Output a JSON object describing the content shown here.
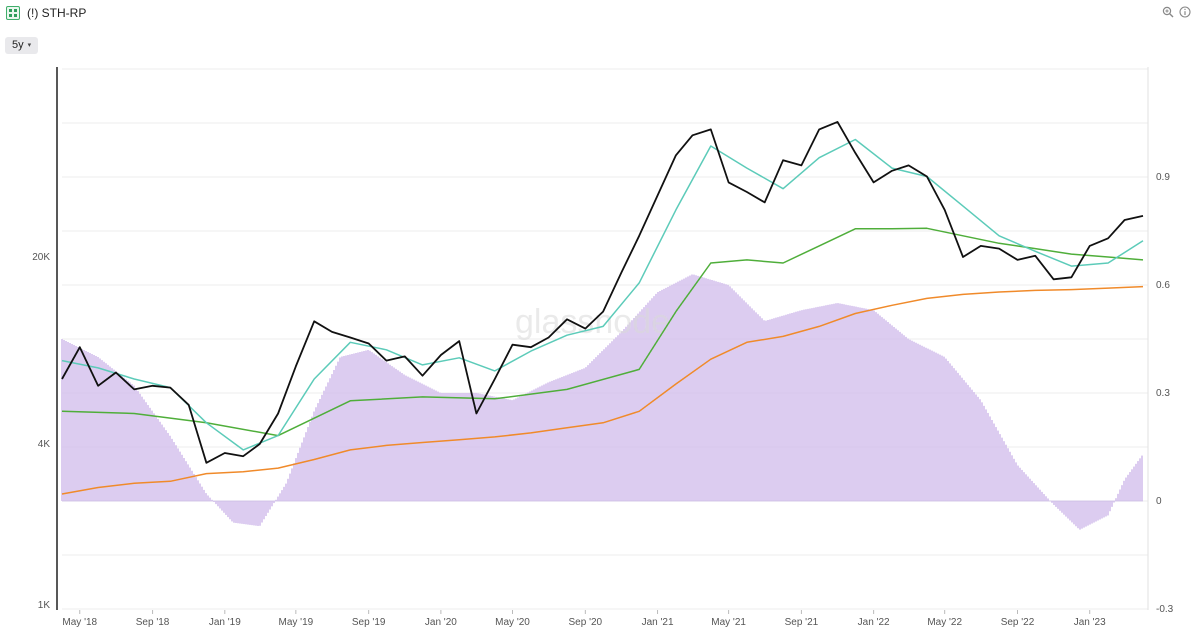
{
  "window": {
    "title": "(!) STH-RP",
    "app_icon": "chart-grid-icon",
    "zoom_icon": "zoom-icon",
    "info_icon": "info-icon"
  },
  "toolbar": {
    "range_label": "5y",
    "range_chevron": "▾"
  },
  "watermark": "glassnode",
  "colors": {
    "price": "#111111",
    "cyan_ma": "#5ccbb9",
    "green_ma": "#4fae3a",
    "sth_rp": "#f08a2a",
    "oscillator": "#d3c0ec"
  },
  "chart_data": {
    "type": "line",
    "x_labels": [
      "May '18",
      "Sep '18",
      "Jan '19",
      "May '19",
      "Sep '19",
      "Jan '20",
      "May '20",
      "Sep '20",
      "Jan '21",
      "May '21",
      "Sep '21",
      "Jan '22",
      "May '22",
      "Sep '22",
      "Jan '23"
    ],
    "left_axis": {
      "scale": "log",
      "tick_labels": [
        "1K",
        "4K",
        "20K"
      ],
      "tick_values": [
        1000,
        4000,
        20000
      ],
      "range": [
        1000,
        120000
      ]
    },
    "right_axis": {
      "scale": "linear",
      "tick_labels": [
        "-0.3",
        "0",
        "0.3",
        "0.6",
        "0.9"
      ],
      "tick_values": [
        -0.3,
        0,
        0.3,
        0.6,
        0.9
      ],
      "range": [
        -0.3,
        1.2
      ]
    },
    "x_range": [
      "2018-04-01",
      "2023-04-01"
    ],
    "grid": true,
    "legend": "none",
    "series": [
      {
        "color": "#111111",
        "axis": "left",
        "points": [
          [
            "2018-04-01",
            7000
          ],
          [
            "2018-05-01",
            9200
          ],
          [
            "2018-06-01",
            6600
          ],
          [
            "2018-07-01",
            7400
          ],
          [
            "2018-08-01",
            6400
          ],
          [
            "2018-09-01",
            6600
          ],
          [
            "2018-10-01",
            6500
          ],
          [
            "2018-11-01",
            5600
          ],
          [
            "2018-12-01",
            3400
          ],
          [
            "2019-01-01",
            3700
          ],
          [
            "2019-02-01",
            3600
          ],
          [
            "2019-03-01",
            4000
          ],
          [
            "2019-04-01",
            5200
          ],
          [
            "2019-05-01",
            7800
          ],
          [
            "2019-06-01",
            11500
          ],
          [
            "2019-07-01",
            10500
          ],
          [
            "2019-08-01",
            10000
          ],
          [
            "2019-09-01",
            9500
          ],
          [
            "2019-10-01",
            8200
          ],
          [
            "2019-11-01",
            8500
          ],
          [
            "2019-12-01",
            7200
          ],
          [
            "2020-01-01",
            8600
          ],
          [
            "2020-02-01",
            9700
          ],
          [
            "2020-03-01",
            5200
          ],
          [
            "2020-04-01",
            7000
          ],
          [
            "2020-05-01",
            9400
          ],
          [
            "2020-06-01",
            9200
          ],
          [
            "2020-07-01",
            10000
          ],
          [
            "2020-08-01",
            11700
          ],
          [
            "2020-09-01",
            10800
          ],
          [
            "2020-10-01",
            12500
          ],
          [
            "2020-11-01",
            17500
          ],
          [
            "2020-12-01",
            24000
          ],
          [
            "2021-01-01",
            34000
          ],
          [
            "2021-02-01",
            48000
          ],
          [
            "2021-03-01",
            57000
          ],
          [
            "2021-04-01",
            60000
          ],
          [
            "2021-05-01",
            38000
          ],
          [
            "2021-06-01",
            35000
          ],
          [
            "2021-07-01",
            32000
          ],
          [
            "2021-08-01",
            46000
          ],
          [
            "2021-09-01",
            44000
          ],
          [
            "2021-10-01",
            60000
          ],
          [
            "2021-11-01",
            64000
          ],
          [
            "2021-12-01",
            49000
          ],
          [
            "2022-01-01",
            38000
          ],
          [
            "2022-02-01",
            42000
          ],
          [
            "2022-03-01",
            44000
          ],
          [
            "2022-04-01",
            40000
          ],
          [
            "2022-05-01",
            30000
          ],
          [
            "2022-06-01",
            20000
          ],
          [
            "2022-07-01",
            22000
          ],
          [
            "2022-08-01",
            21500
          ],
          [
            "2022-09-01",
            19500
          ],
          [
            "2022-10-01",
            20200
          ],
          [
            "2022-11-01",
            16500
          ],
          [
            "2022-12-01",
            16800
          ],
          [
            "2023-01-01",
            22000
          ],
          [
            "2023-02-01",
            23500
          ],
          [
            "2023-03-01",
            27500
          ],
          [
            "2023-04-01",
            28500
          ]
        ]
      },
      {
        "color": "#5ccbb9",
        "axis": "left",
        "points": [
          [
            "2018-04-01",
            8200
          ],
          [
            "2018-06-01",
            7700
          ],
          [
            "2018-08-01",
            7000
          ],
          [
            "2018-10-01",
            6500
          ],
          [
            "2018-12-01",
            4800
          ],
          [
            "2019-02-01",
            3800
          ],
          [
            "2019-04-01",
            4300
          ],
          [
            "2019-06-01",
            7000
          ],
          [
            "2019-08-01",
            9600
          ],
          [
            "2019-10-01",
            9000
          ],
          [
            "2019-12-01",
            7900
          ],
          [
            "2020-02-01",
            8400
          ],
          [
            "2020-04-01",
            7500
          ],
          [
            "2020-06-01",
            8900
          ],
          [
            "2020-08-01",
            10200
          ],
          [
            "2020-10-01",
            11000
          ],
          [
            "2020-12-01",
            16000
          ],
          [
            "2021-02-01",
            30000
          ],
          [
            "2021-04-01",
            52000
          ],
          [
            "2021-06-01",
            43000
          ],
          [
            "2021-08-01",
            36000
          ],
          [
            "2021-10-01",
            47000
          ],
          [
            "2021-12-01",
            55000
          ],
          [
            "2022-02-01",
            43000
          ],
          [
            "2022-04-01",
            40000
          ],
          [
            "2022-06-01",
            31000
          ],
          [
            "2022-08-01",
            24000
          ],
          [
            "2022-10-01",
            21000
          ],
          [
            "2022-12-01",
            18500
          ],
          [
            "2023-02-01",
            19000
          ],
          [
            "2023-04-01",
            23000
          ]
        ]
      },
      {
        "color": "#4fae3a",
        "axis": "left",
        "points": [
          [
            "2018-04-01",
            5300
          ],
          [
            "2018-08-01",
            5200
          ],
          [
            "2018-12-01",
            4800
          ],
          [
            "2019-04-01",
            4300
          ],
          [
            "2019-08-01",
            5800
          ],
          [
            "2019-12-01",
            6000
          ],
          [
            "2020-04-01",
            5900
          ],
          [
            "2020-08-01",
            6400
          ],
          [
            "2020-12-01",
            7600
          ],
          [
            "2021-02-01",
            12500
          ],
          [
            "2021-04-01",
            19000
          ],
          [
            "2021-06-01",
            19500
          ],
          [
            "2021-08-01",
            19000
          ],
          [
            "2021-10-01",
            22000
          ],
          [
            "2021-12-01",
            25500
          ],
          [
            "2022-02-01",
            25500
          ],
          [
            "2022-04-01",
            25600
          ],
          [
            "2022-06-01",
            24000
          ],
          [
            "2022-08-01",
            22500
          ],
          [
            "2022-10-01",
            21500
          ],
          [
            "2022-12-01",
            20500
          ],
          [
            "2023-02-01",
            20000
          ],
          [
            "2023-04-01",
            19500
          ]
        ]
      },
      {
        "color": "#f08a2a",
        "axis": "left",
        "points": [
          [
            "2018-04-01",
            2600
          ],
          [
            "2018-06-01",
            2750
          ],
          [
            "2018-08-01",
            2850
          ],
          [
            "2018-10-01",
            2900
          ],
          [
            "2018-12-01",
            3100
          ],
          [
            "2019-02-01",
            3150
          ],
          [
            "2019-04-01",
            3250
          ],
          [
            "2019-06-01",
            3500
          ],
          [
            "2019-08-01",
            3800
          ],
          [
            "2019-10-01",
            3950
          ],
          [
            "2019-12-01",
            4050
          ],
          [
            "2020-02-01",
            4150
          ],
          [
            "2020-04-01",
            4250
          ],
          [
            "2020-06-01",
            4400
          ],
          [
            "2020-08-01",
            4600
          ],
          [
            "2020-10-01",
            4800
          ],
          [
            "2020-12-01",
            5300
          ],
          [
            "2021-02-01",
            6700
          ],
          [
            "2021-04-01",
            8300
          ],
          [
            "2021-06-01",
            9600
          ],
          [
            "2021-08-01",
            10100
          ],
          [
            "2021-10-01",
            11000
          ],
          [
            "2021-12-01",
            12300
          ],
          [
            "2022-02-01",
            13200
          ],
          [
            "2022-04-01",
            14000
          ],
          [
            "2022-06-01",
            14500
          ],
          [
            "2022-08-01",
            14800
          ],
          [
            "2022-10-01",
            15000
          ],
          [
            "2022-12-01",
            15100
          ],
          [
            "2023-02-01",
            15300
          ],
          [
            "2023-04-01",
            15500
          ]
        ]
      },
      {
        "color": "#d3c0ec",
        "axis": "right",
        "kind": "bars",
        "points": [
          [
            "2018-04-01",
            0.45
          ],
          [
            "2018-06-01",
            0.4
          ],
          [
            "2018-08-01",
            0.32
          ],
          [
            "2018-10-01",
            0.18
          ],
          [
            "2018-12-01",
            0.02
          ],
          [
            "2019-01-15",
            -0.06
          ],
          [
            "2019-03-01",
            -0.07
          ],
          [
            "2019-04-15",
            0.05
          ],
          [
            "2019-06-01",
            0.25
          ],
          [
            "2019-07-15",
            0.4
          ],
          [
            "2019-09-01",
            0.42
          ],
          [
            "2019-11-01",
            0.35
          ],
          [
            "2020-01-01",
            0.3
          ],
          [
            "2020-03-01",
            0.3
          ],
          [
            "2020-05-01",
            0.28
          ],
          [
            "2020-07-01",
            0.33
          ],
          [
            "2020-09-01",
            0.37
          ],
          [
            "2020-11-01",
            0.47
          ],
          [
            "2021-01-01",
            0.58
          ],
          [
            "2021-03-01",
            0.63
          ],
          [
            "2021-05-01",
            0.6
          ],
          [
            "2021-07-01",
            0.5
          ],
          [
            "2021-09-01",
            0.53
          ],
          [
            "2021-11-01",
            0.55
          ],
          [
            "2022-01-01",
            0.53
          ],
          [
            "2022-03-01",
            0.45
          ],
          [
            "2022-05-01",
            0.4
          ],
          [
            "2022-07-01",
            0.28
          ],
          [
            "2022-09-01",
            0.1
          ],
          [
            "2022-11-01",
            -0.01
          ],
          [
            "2022-12-15",
            -0.08
          ],
          [
            "2023-02-01",
            -0.04
          ],
          [
            "2023-03-01",
            0.06
          ],
          [
            "2023-04-01",
            0.13
          ]
        ]
      }
    ]
  }
}
